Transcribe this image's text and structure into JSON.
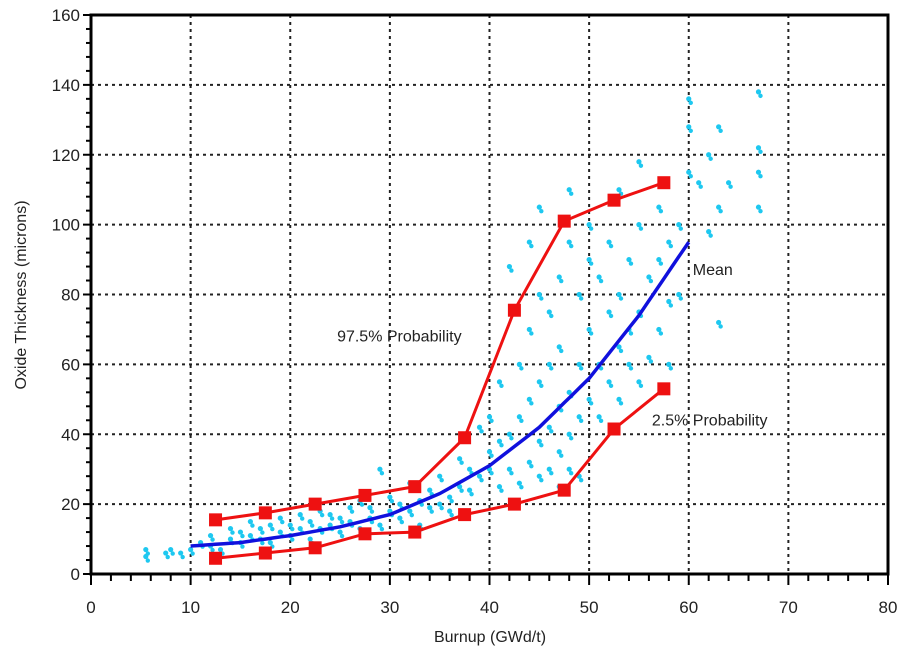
{
  "chart_data": {
    "type": "scatter",
    "xlabel": "Burnup (GWd/t)",
    "ylabel": "Oxide Thickness (microns)",
    "xlim": [
      0,
      80
    ],
    "ylim": [
      0,
      160
    ],
    "xticks": [
      "0",
      "10",
      "20",
      "30",
      "40",
      "50",
      "60",
      "70",
      "80"
    ],
    "yticks": [
      "0",
      "20",
      "40",
      "60",
      "80",
      "100",
      "120",
      "140",
      "160"
    ],
    "grid": true,
    "colors": {
      "scatter": "#1ec8f0",
      "bounds": "#ee1111",
      "mean": "#1010dd"
    },
    "series": [
      {
        "name": "97.5% Probability",
        "type": "line-markers",
        "x": [
          12.5,
          17.5,
          22.5,
          27.5,
          32.5,
          37.5,
          42.5,
          47.5,
          52.5,
          57.5
        ],
        "y": [
          15.5,
          17.5,
          20,
          22.5,
          25,
          39,
          75.5,
          101,
          107,
          112
        ]
      },
      {
        "name": "2.5% Probability",
        "type": "line-markers",
        "x": [
          12.5,
          17.5,
          22.5,
          27.5,
          32.5,
          37.5,
          42.5,
          47.5,
          52.5,
          57.5
        ],
        "y": [
          4.5,
          6,
          7.5,
          11.5,
          12,
          17,
          20,
          24,
          41.5,
          53
        ]
      },
      {
        "name": "Mean",
        "type": "line",
        "x": [
          10,
          15,
          20,
          25,
          30,
          35,
          40,
          45,
          50,
          55,
          60
        ],
        "y": [
          8,
          9,
          11,
          13.5,
          17,
          23,
          31,
          42,
          56,
          74,
          95
        ]
      }
    ],
    "annotations": [
      {
        "text": "97.5% Probability",
        "x": 24.7,
        "y": 68
      },
      {
        "text": "Mean",
        "x": 60.4,
        "y": 87
      },
      {
        "text": "2.5% Probability",
        "x": 56.3,
        "y": 44
      }
    ],
    "scatter_points": [
      [
        5.5,
        5
      ],
      [
        5.5,
        7
      ],
      [
        7.5,
        6
      ],
      [
        8,
        7
      ],
      [
        9,
        6
      ],
      [
        10,
        7
      ],
      [
        11,
        9
      ],
      [
        12,
        8
      ],
      [
        12,
        11
      ],
      [
        13,
        7
      ],
      [
        14,
        10
      ],
      [
        14,
        13
      ],
      [
        15,
        9
      ],
      [
        15,
        12
      ],
      [
        16,
        11
      ],
      [
        16,
        15
      ],
      [
        17,
        10
      ],
      [
        17,
        13
      ],
      [
        18,
        9
      ],
      [
        18,
        14
      ],
      [
        19,
        12
      ],
      [
        19,
        16
      ],
      [
        20,
        11
      ],
      [
        20,
        14
      ],
      [
        21,
        13
      ],
      [
        21,
        17
      ],
      [
        22,
        10
      ],
      [
        22,
        15
      ],
      [
        23,
        13
      ],
      [
        23,
        18
      ],
      [
        24,
        14
      ],
      [
        24,
        17
      ],
      [
        25,
        12
      ],
      [
        25,
        16
      ],
      [
        26,
        15
      ],
      [
        26,
        19
      ],
      [
        27,
        13
      ],
      [
        27,
        21
      ],
      [
        28,
        16
      ],
      [
        28,
        19
      ],
      [
        29,
        14
      ],
      [
        29,
        30
      ],
      [
        30,
        18
      ],
      [
        30,
        22
      ],
      [
        31,
        16
      ],
      [
        31,
        20
      ],
      [
        32,
        18
      ],
      [
        32,
        26
      ],
      [
        33,
        21
      ],
      [
        33,
        14
      ],
      [
        34,
        19
      ],
      [
        34,
        24
      ],
      [
        35,
        20
      ],
      [
        35,
        28
      ],
      [
        36,
        22
      ],
      [
        36,
        18
      ],
      [
        37,
        25
      ],
      [
        37,
        33
      ],
      [
        38,
        24
      ],
      [
        38,
        30
      ],
      [
        39,
        28
      ],
      [
        39,
        42
      ],
      [
        40,
        30
      ],
      [
        40,
        35
      ],
      [
        40,
        45
      ],
      [
        41,
        25
      ],
      [
        41,
        38
      ],
      [
        41,
        55
      ],
      [
        42,
        30
      ],
      [
        42,
        40
      ],
      [
        42,
        88
      ],
      [
        43,
        26
      ],
      [
        43,
        45
      ],
      [
        43,
        60
      ],
      [
        44,
        32
      ],
      [
        44,
        50
      ],
      [
        44,
        70
      ],
      [
        44,
        95
      ],
      [
        45,
        28
      ],
      [
        45,
        38
      ],
      [
        45,
        55
      ],
      [
        45,
        80
      ],
      [
        45,
        105
      ],
      [
        46,
        30
      ],
      [
        46,
        42
      ],
      [
        46,
        60
      ],
      [
        46,
        75
      ],
      [
        47,
        25
      ],
      [
        47,
        35
      ],
      [
        47,
        48
      ],
      [
        47,
        65
      ],
      [
        47,
        85
      ],
      [
        48,
        30
      ],
      [
        48,
        40
      ],
      [
        48,
        52
      ],
      [
        48,
        95
      ],
      [
        48,
        110
      ],
      [
        49,
        28
      ],
      [
        49,
        45
      ],
      [
        49,
        60
      ],
      [
        49,
        80
      ],
      [
        50,
        50
      ],
      [
        50,
        70
      ],
      [
        50,
        90
      ],
      [
        50,
        100
      ],
      [
        51,
        45
      ],
      [
        51,
        60
      ],
      [
        51,
        85
      ],
      [
        52,
        55
      ],
      [
        52,
        75
      ],
      [
        52,
        95
      ],
      [
        53,
        50
      ],
      [
        53,
        65
      ],
      [
        53,
        80
      ],
      [
        53,
        110
      ],
      [
        54,
        60
      ],
      [
        54,
        70
      ],
      [
        54,
        90
      ],
      [
        55,
        55
      ],
      [
        55,
        75
      ],
      [
        55,
        100
      ],
      [
        55,
        118
      ],
      [
        56,
        62
      ],
      [
        56,
        85
      ],
      [
        57,
        70
      ],
      [
        57,
        90
      ],
      [
        57,
        105
      ],
      [
        58,
        60
      ],
      [
        58,
        78
      ],
      [
        58,
        95
      ],
      [
        59,
        80
      ],
      [
        59,
        100
      ],
      [
        60,
        115
      ],
      [
        60,
        128
      ],
      [
        60,
        136
      ],
      [
        61,
        112
      ],
      [
        62,
        98
      ],
      [
        62,
        120
      ],
      [
        63,
        105
      ],
      [
        63,
        72
      ],
      [
        63,
        128
      ],
      [
        64,
        112
      ],
      [
        67,
        138
      ],
      [
        67,
        122
      ],
      [
        67,
        105
      ],
      [
        67,
        115
      ]
    ]
  }
}
